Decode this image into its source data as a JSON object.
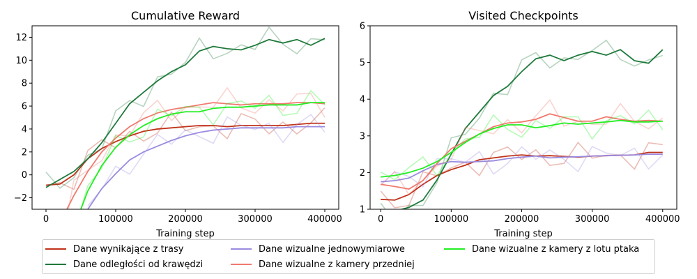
{
  "chart_data": [
    {
      "type": "line",
      "title": "Cumulative Reward",
      "xlabel": "Training step",
      "ylabel": "",
      "xlim": [
        -20000,
        420000
      ],
      "ylim": [
        -3,
        13
      ],
      "xticks": [
        0,
        100000,
        200000,
        300000,
        400000
      ],
      "yticks": [
        -2,
        0,
        2,
        4,
        6,
        8,
        10,
        12
      ],
      "series": [
        {
          "name": "Dane wynikające z trasy",
          "color": "#c0321a",
          "x": [
            0,
            20000,
            40000,
            60000,
            80000,
            100000,
            120000,
            140000,
            160000,
            180000,
            200000,
            220000,
            240000,
            260000,
            280000,
            300000,
            320000,
            340000,
            360000,
            380000,
            400000
          ],
          "y": [
            -0.9,
            -0.8,
            0.0,
            1.4,
            2.3,
            2.9,
            3.4,
            3.8,
            4.0,
            4.1,
            4.2,
            4.3,
            4.3,
            4.2,
            4.3,
            4.3,
            4.3,
            4.3,
            4.4,
            4.5,
            4.5
          ]
        },
        {
          "name": "Dane odległości od krawędzi",
          "color": "#1f7a3c",
          "x": [
            0,
            20000,
            40000,
            60000,
            80000,
            100000,
            120000,
            140000,
            160000,
            180000,
            200000,
            220000,
            240000,
            260000,
            280000,
            300000,
            320000,
            340000,
            360000,
            380000,
            400000
          ],
          "y": [
            -1.1,
            -0.4,
            0.3,
            1.4,
            2.8,
            4.5,
            6.2,
            7.2,
            8.2,
            9.0,
            9.6,
            10.8,
            11.2,
            11.0,
            10.9,
            11.3,
            11.8,
            11.5,
            11.8,
            11.3,
            11.9
          ]
        },
        {
          "name": "Dane wizualne jednowymiarowe",
          "color": "#9b8be0",
          "x": [
            60000,
            80000,
            100000,
            120000,
            140000,
            160000,
            180000,
            200000,
            220000,
            240000,
            260000,
            280000,
            300000,
            320000,
            340000,
            360000,
            380000,
            400000
          ],
          "y": [
            -3.0,
            -1.2,
            0.1,
            1.3,
            2.0,
            2.5,
            3.0,
            3.4,
            3.7,
            3.9,
            4.0,
            4.1,
            4.1,
            4.1,
            4.1,
            4.2,
            4.2,
            4.2
          ]
        },
        {
          "name": "Dane wizualne z kamery przedniej",
          "color": "#f07a6e",
          "x": [
            30000,
            40000,
            60000,
            80000,
            100000,
            120000,
            140000,
            160000,
            180000,
            200000,
            220000,
            240000,
            260000,
            280000,
            300000,
            320000,
            340000,
            360000,
            380000,
            400000
          ],
          "y": [
            -3.0,
            -1.8,
            0.3,
            2.0,
            3.2,
            4.2,
            4.9,
            5.4,
            5.7,
            5.9,
            6.1,
            6.3,
            6.2,
            6.1,
            6.2,
            6.2,
            6.2,
            6.3,
            6.3,
            6.2
          ]
        },
        {
          "name": "Dane wizualne z kamery z lotu ptaka",
          "color": "#22ee22",
          "x": [
            50000,
            60000,
            80000,
            100000,
            120000,
            140000,
            160000,
            180000,
            200000,
            220000,
            240000,
            260000,
            280000,
            300000,
            320000,
            340000,
            360000,
            380000,
            400000
          ],
          "y": [
            -3.0,
            -1.4,
            0.8,
            2.4,
            3.5,
            4.3,
            4.9,
            5.3,
            5.5,
            5.5,
            5.8,
            5.9,
            5.9,
            6.0,
            6.1,
            6.1,
            6.1,
            6.3,
            6.3
          ]
        }
      ]
    },
    {
      "type": "line",
      "title": "Visited Checkpoints",
      "xlabel": "Training step",
      "ylabel": "",
      "xlim": [
        -15000,
        420000
      ],
      "ylim": [
        1,
        6
      ],
      "xticks": [
        0,
        100000,
        200000,
        300000,
        400000
      ],
      "yticks": [
        1,
        2,
        3,
        4,
        5,
        6
      ],
      "series": [
        {
          "name": "Dane wynikające z trasy",
          "color": "#c0321a",
          "x": [
            0,
            20000,
            40000,
            60000,
            80000,
            100000,
            120000,
            140000,
            160000,
            180000,
            200000,
            220000,
            240000,
            260000,
            280000,
            300000,
            320000,
            340000,
            360000,
            380000,
            400000
          ],
          "y": [
            1.27,
            1.25,
            1.4,
            1.68,
            1.92,
            2.08,
            2.2,
            2.35,
            2.4,
            2.45,
            2.48,
            2.45,
            2.46,
            2.44,
            2.42,
            2.45,
            2.46,
            2.47,
            2.48,
            2.55,
            2.55
          ]
        },
        {
          "name": "Dane odległości od krawędzi",
          "color": "#1f7a3c",
          "x": [
            0,
            20000,
            40000,
            60000,
            80000,
            100000,
            120000,
            140000,
            160000,
            180000,
            200000,
            220000,
            240000,
            260000,
            280000,
            300000,
            320000,
            340000,
            360000,
            380000,
            400000
          ],
          "y": [
            0.9,
            0.95,
            1.05,
            1.25,
            1.8,
            2.5,
            3.2,
            3.65,
            4.1,
            4.35,
            4.75,
            5.1,
            5.2,
            5.05,
            5.2,
            5.3,
            5.2,
            5.35,
            5.05,
            4.98,
            5.35
          ]
        },
        {
          "name": "Dane wizualne jednowymiarowe",
          "color": "#9b8be0",
          "x": [
            0,
            20000,
            40000,
            60000,
            80000,
            100000,
            120000,
            140000,
            160000,
            180000,
            200000,
            220000,
            240000,
            260000,
            280000,
            300000,
            320000,
            340000,
            360000,
            380000,
            400000
          ],
          "y": [
            1.75,
            1.78,
            1.85,
            2.05,
            2.22,
            2.3,
            2.28,
            2.3,
            2.32,
            2.38,
            2.42,
            2.45,
            2.4,
            2.42,
            2.43,
            2.45,
            2.46,
            2.47,
            2.48,
            2.5,
            2.5
          ]
        },
        {
          "name": "Dane wizualne z kamery przedniej",
          "color": "#f07a6e",
          "x": [
            0,
            20000,
            40000,
            60000,
            80000,
            100000,
            120000,
            140000,
            160000,
            180000,
            200000,
            220000,
            240000,
            260000,
            280000,
            300000,
            320000,
            340000,
            360000,
            380000,
            400000
          ],
          "y": [
            1.68,
            1.62,
            1.55,
            1.78,
            2.25,
            2.65,
            2.85,
            3.05,
            3.25,
            3.35,
            3.38,
            3.45,
            3.6,
            3.5,
            3.4,
            3.4,
            3.52,
            3.45,
            3.4,
            3.42,
            3.4
          ]
        },
        {
          "name": "Dane wizualne z kamery z lotu ptaka",
          "color": "#22ee22",
          "x": [
            0,
            20000,
            40000,
            60000,
            80000,
            100000,
            120000,
            140000,
            160000,
            180000,
            200000,
            220000,
            240000,
            260000,
            280000,
            300000,
            320000,
            340000,
            360000,
            380000,
            400000
          ],
          "y": [
            1.88,
            1.92,
            2.0,
            2.12,
            2.3,
            2.55,
            2.82,
            3.05,
            3.2,
            3.3,
            3.3,
            3.22,
            3.28,
            3.35,
            3.32,
            3.35,
            3.38,
            3.42,
            3.38,
            3.38,
            3.4
          ]
        }
      ]
    }
  ],
  "legend": {
    "items": [
      {
        "label": "Dane wynikające z trasy",
        "color": "#c0321a"
      },
      {
        "label": "Dane odległości od krawędzi",
        "color": "#1f7a3c"
      },
      {
        "label": "Dane wizualne jednowymiarowe",
        "color": "#9b8be0"
      },
      {
        "label": "Dane wizualne z kamery przedniej",
        "color": "#f07a6e"
      },
      {
        "label": "Dane wizualne z kamery z lotu ptaka",
        "color": "#22ee22"
      }
    ]
  }
}
